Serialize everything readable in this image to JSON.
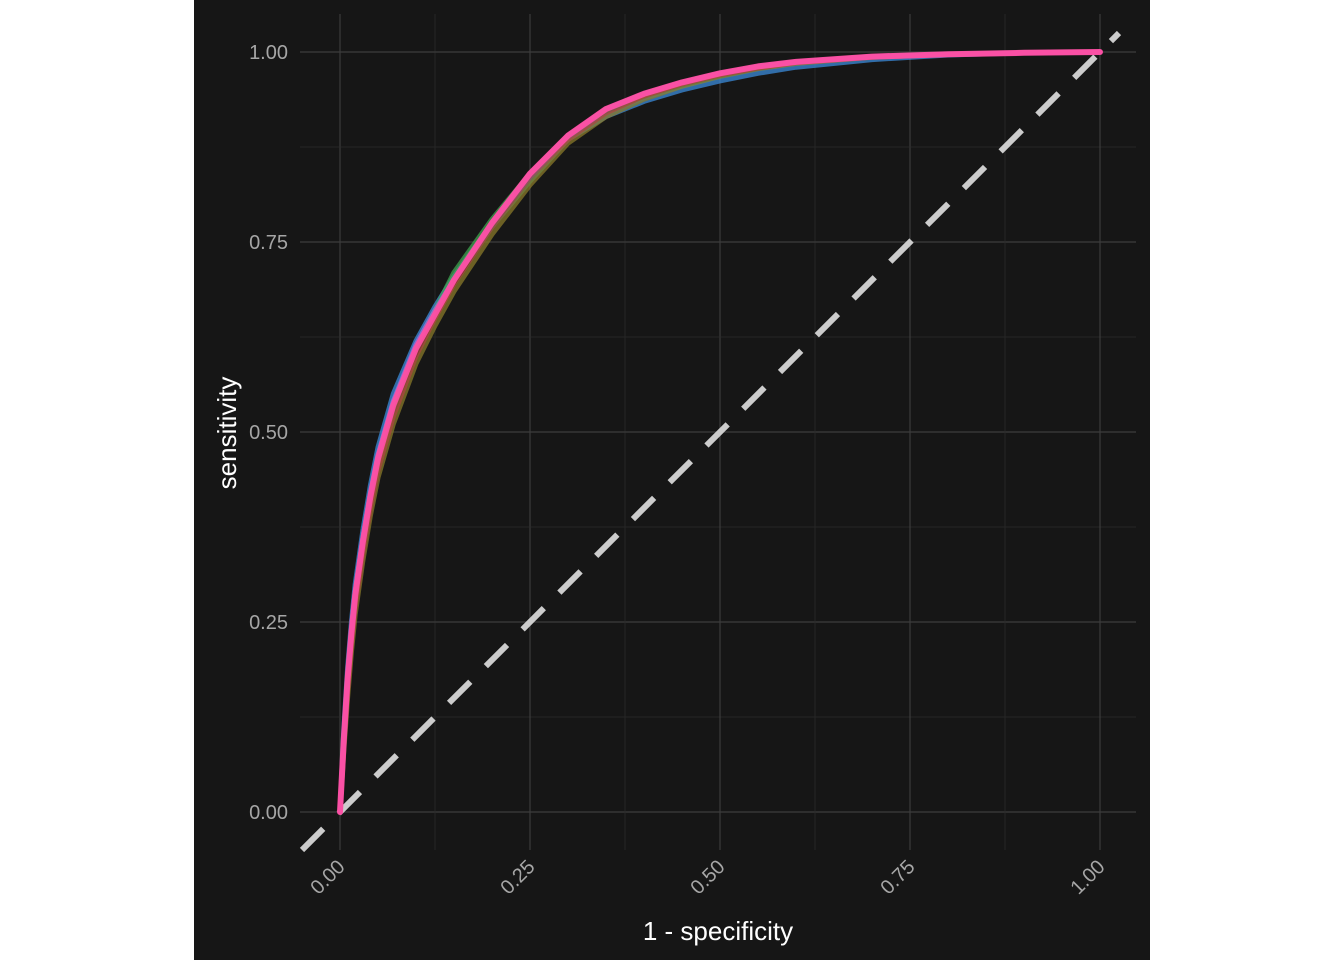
{
  "chart_data": {
    "type": "line",
    "title": "",
    "xlabel": "1 - specificity",
    "ylabel": "sensitivity",
    "xlim": [
      0,
      1
    ],
    "ylim": [
      0,
      1
    ],
    "x_ticks": [
      "0.00",
      "0.25",
      "0.50",
      "0.75",
      "1.00"
    ],
    "y_ticks": [
      "0.00",
      "0.25",
      "0.50",
      "0.75",
      "1.00"
    ],
    "grid": true,
    "legend": "none",
    "reference_line": {
      "from": [
        0,
        0
      ],
      "to": [
        1,
        1
      ],
      "style": "dashed",
      "color": "#cccccc"
    },
    "x": [
      0,
      0.005,
      0.01,
      0.015,
      0.02,
      0.03,
      0.04,
      0.05,
      0.07,
      0.1,
      0.125,
      0.15,
      0.2,
      0.25,
      0.3,
      0.35,
      0.4,
      0.45,
      0.5,
      0.55,
      0.6,
      0.7,
      0.8,
      0.9,
      1.0
    ],
    "series": [
      {
        "color": "#1f9e89",
        "values": [
          0,
          0.1,
          0.18,
          0.24,
          0.29,
          0.36,
          0.42,
          0.47,
          0.54,
          0.61,
          0.655,
          0.7,
          0.77,
          0.83,
          0.885,
          0.92,
          0.94,
          0.955,
          0.968,
          0.978,
          0.985,
          0.993,
          0.997,
          0.999,
          1.0
        ]
      },
      {
        "color": "#3b8bd9",
        "values": [
          0,
          0.11,
          0.19,
          0.25,
          0.3,
          0.37,
          0.43,
          0.48,
          0.55,
          0.62,
          0.665,
          0.705,
          0.775,
          0.835,
          0.885,
          0.915,
          0.935,
          0.95,
          0.962,
          0.972,
          0.98,
          0.99,
          0.996,
          0.999,
          1.0
        ]
      },
      {
        "color": "#3fa34d",
        "values": [
          0,
          0.09,
          0.17,
          0.23,
          0.28,
          0.35,
          0.41,
          0.46,
          0.53,
          0.61,
          0.66,
          0.71,
          0.78,
          0.84,
          0.89,
          0.925,
          0.945,
          0.96,
          0.972,
          0.98,
          0.987,
          0.994,
          0.997,
          0.999,
          1.0
        ]
      },
      {
        "color": "#8a7a2a",
        "values": [
          0,
          0.08,
          0.15,
          0.21,
          0.26,
          0.33,
          0.39,
          0.44,
          0.51,
          0.59,
          0.64,
          0.685,
          0.76,
          0.825,
          0.88,
          0.915,
          0.938,
          0.955,
          0.968,
          0.978,
          0.985,
          0.993,
          0.997,
          0.999,
          1.0
        ]
      },
      {
        "color": "#a9463f",
        "values": [
          0,
          0.085,
          0.16,
          0.22,
          0.27,
          0.34,
          0.4,
          0.45,
          0.52,
          0.6,
          0.65,
          0.695,
          0.77,
          0.835,
          0.885,
          0.92,
          0.942,
          0.958,
          0.97,
          0.979,
          0.986,
          0.993,
          0.997,
          0.999,
          1.0
        ]
      },
      {
        "color": "#9b6fe0",
        "values": [
          0,
          0.1,
          0.18,
          0.24,
          0.29,
          0.36,
          0.42,
          0.47,
          0.54,
          0.615,
          0.66,
          0.7,
          0.775,
          0.84,
          0.89,
          0.925,
          0.945,
          0.96,
          0.972,
          0.981,
          0.987,
          0.994,
          0.997,
          0.999,
          1.0
        ]
      },
      {
        "color": "#ff4fa3",
        "values": [
          0,
          0.095,
          0.175,
          0.235,
          0.285,
          0.355,
          0.415,
          0.465,
          0.535,
          0.61,
          0.655,
          0.7,
          0.775,
          0.84,
          0.89,
          0.925,
          0.945,
          0.96,
          0.972,
          0.981,
          0.987,
          0.994,
          0.997,
          0.999,
          1.0
        ]
      }
    ]
  }
}
